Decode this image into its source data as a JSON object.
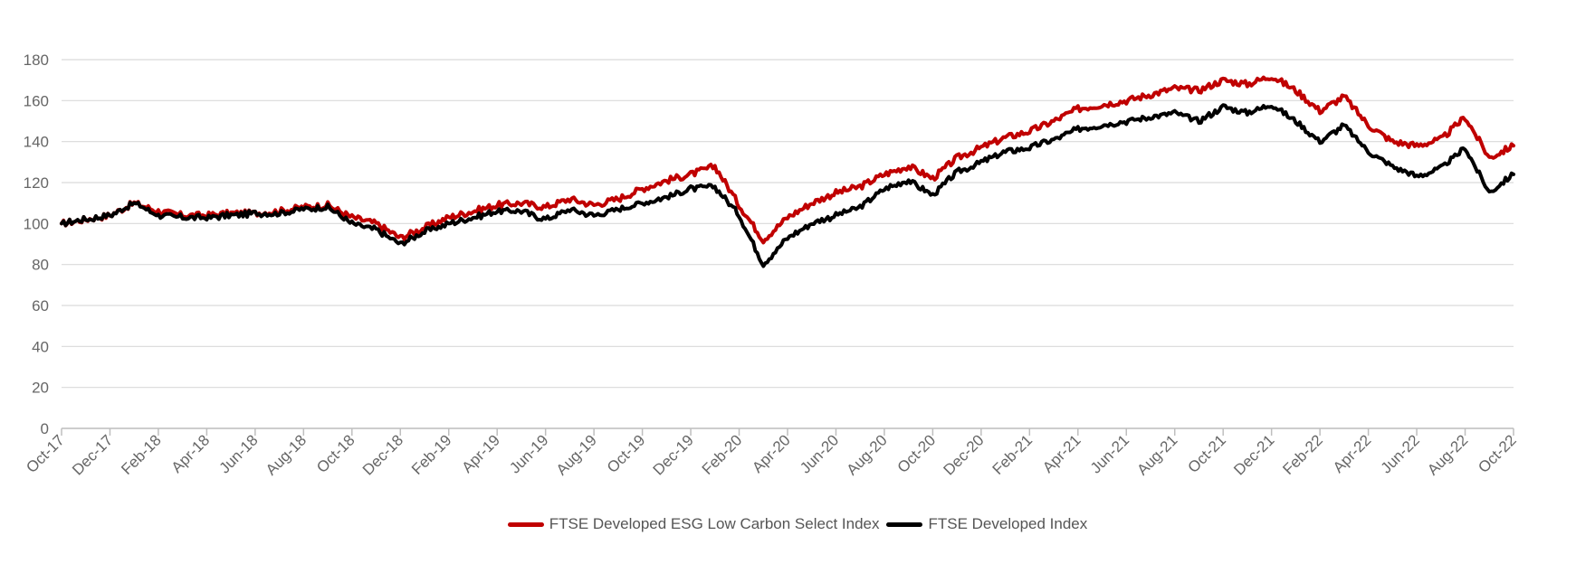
{
  "chart_data": {
    "type": "line",
    "title": "",
    "xlabel": "",
    "ylabel": "",
    "ylim": [
      0,
      180
    ],
    "y_ticks": [
      "0",
      "20",
      "40",
      "60",
      "80",
      "100",
      "120",
      "140",
      "160",
      "180"
    ],
    "x_ticks": [
      "Oct-17",
      "Dec-17",
      "Feb-18",
      "Apr-18",
      "Jun-18",
      "Aug-18",
      "Oct-18",
      "Dec-18",
      "Feb-19",
      "Apr-19",
      "Jun-19",
      "Aug-19",
      "Oct-19",
      "Dec-19",
      "Feb-20",
      "Apr-20",
      "Jun-20",
      "Aug-20",
      "Oct-20",
      "Dec-20",
      "Feb-21",
      "Apr-21",
      "Jun-21",
      "Aug-21",
      "Oct-21",
      "Dec-21",
      "Feb-22",
      "Apr-22",
      "Jun-22",
      "Aug-22",
      "Oct-22"
    ],
    "grid": true,
    "legend_position": "bottom-center",
    "x": [
      "Oct-17",
      "Nov-17",
      "Dec-17",
      "Jan-18",
      "Feb-18",
      "Mar-18",
      "Apr-18",
      "May-18",
      "Jun-18",
      "Jul-18",
      "Aug-18",
      "Sep-18",
      "Oct-18",
      "Nov-18",
      "Dec-18",
      "Jan-19",
      "Feb-19",
      "Mar-19",
      "Apr-19",
      "May-19",
      "Jun-19",
      "Jul-19",
      "Aug-19",
      "Sep-19",
      "Oct-19",
      "Nov-19",
      "Dec-19",
      "Jan-20",
      "Feb-20",
      "Mar-20",
      "Apr-20",
      "May-20",
      "Jun-20",
      "Jul-20",
      "Aug-20",
      "Sep-20",
      "Oct-20",
      "Nov-20",
      "Dec-20",
      "Jan-21",
      "Feb-21",
      "Mar-21",
      "Apr-21",
      "May-21",
      "Jun-21",
      "Jul-21",
      "Aug-21",
      "Sep-21",
      "Oct-21",
      "Nov-21",
      "Dec-21",
      "Jan-22",
      "Feb-22",
      "Mar-22",
      "Apr-22",
      "May-22",
      "Jun-22",
      "Jul-22",
      "Aug-22",
      "Sep-22",
      "Oct-22"
    ],
    "series": [
      {
        "name": "FTSE Developed ESG Low Carbon Select Index",
        "color": "#c00000",
        "values": [
          100,
          102,
          104,
          110,
          106,
          104,
          104,
          105,
          105,
          106,
          108,
          109,
          103,
          100,
          93,
          98,
          103,
          106,
          109,
          110,
          108,
          112,
          109,
          112,
          117,
          121,
          124,
          128,
          109,
          92,
          103,
          110,
          115,
          118,
          124,
          128,
          122,
          132,
          137,
          142,
          145,
          150,
          156,
          158,
          160,
          163,
          166,
          165,
          170,
          168,
          172,
          165,
          155,
          162,
          148,
          140,
          138,
          141,
          152,
          132,
          138
        ]
      },
      {
        "name": "FTSE Developed Index",
        "color": "#000000",
        "values": [
          100,
          102,
          104,
          110,
          104,
          103,
          103,
          104,
          105,
          105,
          107,
          108,
          100,
          97,
          90,
          96,
          100,
          103,
          106,
          106,
          102,
          107,
          104,
          107,
          110,
          113,
          117,
          118,
          104,
          80,
          93,
          100,
          104,
          108,
          117,
          121,
          114,
          125,
          130,
          135,
          137,
          141,
          146,
          148,
          150,
          152,
          154,
          150,
          157,
          154,
          158,
          150,
          140,
          148,
          135,
          128,
          123,
          127,
          137,
          115,
          124
        ]
      }
    ]
  }
}
